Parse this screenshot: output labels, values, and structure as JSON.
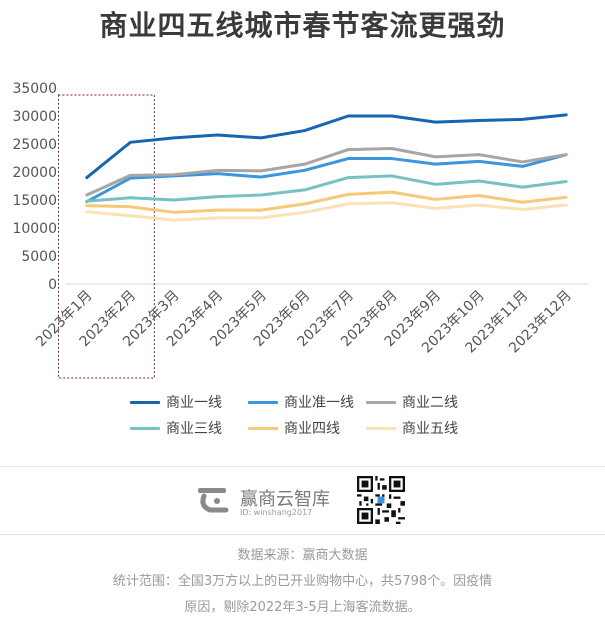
{
  "title": "商业四五线城市春节客流更强劲",
  "chart_data": {
    "type": "line",
    "categories": [
      "2023年1月",
      "2023年2月",
      "2023年3月",
      "2023年4月",
      "2023年5月",
      "2023年6月",
      "2023年7月",
      "2023年8月",
      "2023年9月",
      "2023年10月",
      "2023年11月",
      "2023年12月"
    ],
    "ylim": [
      0,
      35000
    ],
    "yticks": [
      "0",
      "5000",
      "10000",
      "15000",
      "20000",
      "25000",
      "30000",
      "35000"
    ],
    "series": [
      {
        "name": "商业一线",
        "color": "#1565b3",
        "values": [
          19000,
          25300,
          26100,
          26600,
          26100,
          27400,
          30000,
          30000,
          28900,
          29200,
          29400,
          30200
        ]
      },
      {
        "name": "商业准一线",
        "color": "#3a96dd",
        "values": [
          14700,
          18900,
          19300,
          19700,
          19100,
          20300,
          22400,
          22400,
          21400,
          21900,
          21000,
          23100
        ]
      },
      {
        "name": "商业二线",
        "color": "#a6a6a6",
        "values": [
          15900,
          19400,
          19500,
          20300,
          20200,
          21400,
          24000,
          24200,
          22700,
          23100,
          21800,
          23100
        ]
      },
      {
        "name": "商业三线",
        "color": "#76c2c2",
        "values": [
          14800,
          15400,
          15000,
          15600,
          15900,
          16800,
          19000,
          19300,
          17800,
          18400,
          17300,
          18300
        ]
      },
      {
        "name": "商业四线",
        "color": "#f7c878",
        "values": [
          14000,
          13800,
          12800,
          13200,
          13200,
          14300,
          16000,
          16400,
          15100,
          15800,
          14600,
          15500
        ]
      },
      {
        "name": "商业五线",
        "color": "#fbe2b4",
        "values": [
          12900,
          12200,
          11400,
          11800,
          11800,
          12800,
          14300,
          14500,
          13500,
          14100,
          13300,
          14100
        ]
      }
    ],
    "highlight": {
      "from": "2023年1月",
      "to": "2023年2月"
    }
  },
  "brand": {
    "name": "赢商云智库",
    "id": "ID: winshang2017"
  },
  "footer": {
    "source": "数据来源：赢商大数据",
    "scope_line1": "统计范围：全国3万方以上的已开业购物中心，共5798个。因疫情",
    "scope_line2": "原因，剔除2022年3-5月上海客流数据。"
  }
}
